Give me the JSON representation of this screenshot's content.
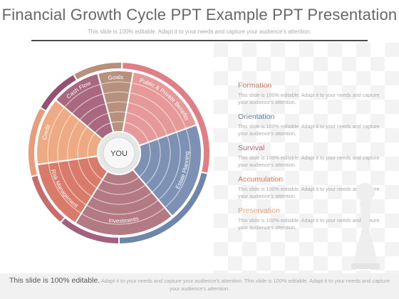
{
  "header": {
    "title": "Financial Growth Cycle PPT Example PPT Presentation",
    "subtitle": "This slide is 100% editable. Adapt it to your needs and capture your audience's attention."
  },
  "diagram": {
    "center_label": "YOU",
    "segments": [
      {
        "label": "Goals",
        "color": "#b8917e"
      },
      {
        "label": "Public & Private Benefits",
        "color": "#e59a99"
      },
      {
        "label": "Estate Planning",
        "color": "#7c91b3"
      },
      {
        "label": "Investments",
        "color": "#b47a84"
      },
      {
        "label": "Risk Management",
        "color": "#d97b6a"
      },
      {
        "label": "Credit",
        "color": "#eeaa82"
      },
      {
        "label": "Cash Flow",
        "color": "#a9687f"
      }
    ],
    "colors": {
      "center": "#e6e6e6",
      "outer_dark": "#6f4e5e"
    }
  },
  "items": [
    {
      "title": "Formation",
      "desc": "This slide is 100% editable. Adapt it to your needs and capture your audience's attention.",
      "color": "#d9795f"
    },
    {
      "title": "Orientation",
      "desc": "This slide is 100% editable. Adapt it to your needs and capture your audience's attention.",
      "color": "#6b7f98"
    },
    {
      "title": "Survival",
      "desc": "This slide is 100% editable. Adapt it to your needs and capture your audience's attention.",
      "color": "#a86a80"
    },
    {
      "title": "Accumulation",
      "desc": "This slide is 100% editable. Adapt it to your needs and capture your audience's attention.",
      "color": "#d9795f"
    },
    {
      "title": "Preservation",
      "desc": "This slide is 100% editable. Adapt it to your needs and capture your audience's attention.",
      "color": "#eea27a"
    }
  ],
  "footer": {
    "lead": "This slide is 100% editable.",
    "rest": "Adapt it to your needs and capture your audience's attention. This slide is 100% editable. Adapt it to your needs and capture your audience's attention."
  }
}
